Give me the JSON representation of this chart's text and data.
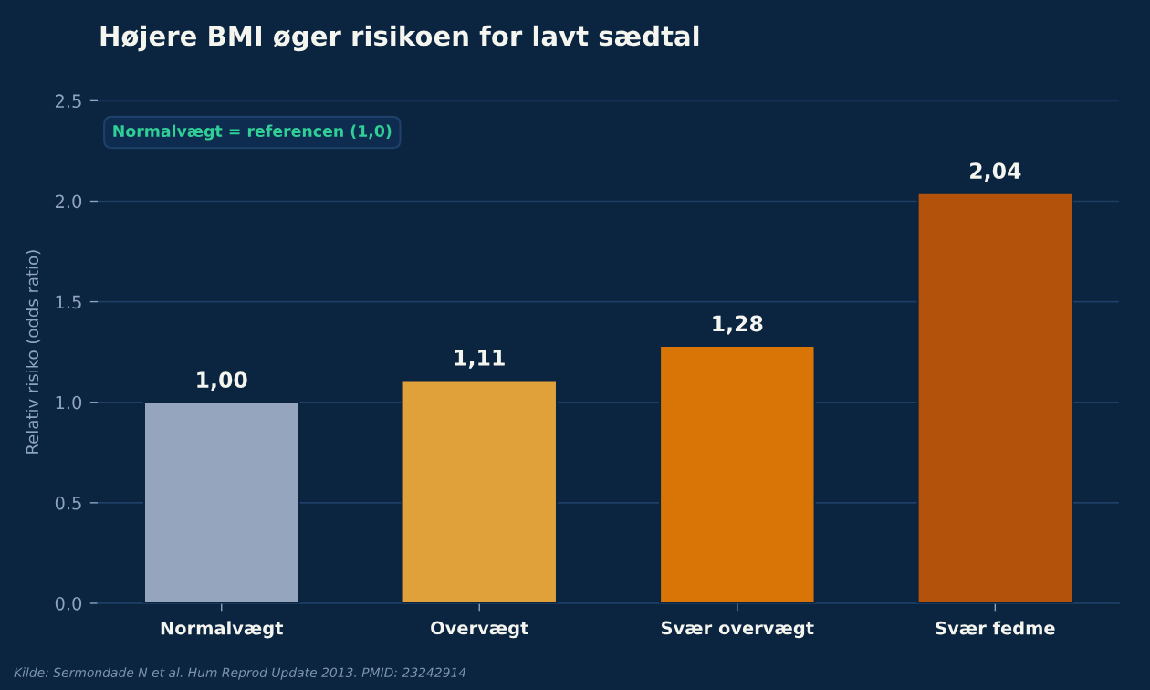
{
  "chart_data": {
    "type": "bar",
    "title": "Højere BMI øger risikoen for lavt sædtal",
    "ylabel": "Relativ risiko (odds ratio)",
    "categories": [
      "Normalvægt",
      "Overvægt",
      "Svær overvægt",
      "Svær fedme"
    ],
    "values": [
      1.0,
      1.11,
      1.28,
      2.04
    ],
    "colors": [
      "#94a5bd",
      "#e0a03a",
      "#d87506",
      "#b3520b"
    ],
    "value_labels": [
      "1,00",
      "1,11",
      "1,28",
      "2,04"
    ],
    "ylim": [
      0,
      2.5
    ],
    "yticks": [
      {
        "value": 0,
        "label": "0.0"
      },
      {
        "value": 0.5,
        "label": "0.5"
      },
      {
        "value": 1,
        "label": "1.0"
      },
      {
        "value": 1.5,
        "label": "1.5"
      },
      {
        "value": 2,
        "label": "2.0"
      },
      {
        "value": 2.5,
        "label": "2.5"
      }
    ],
    "grid": "y",
    "annotations": [
      "Normalvægt = referencen (1,0)",
      "Kilde: Sermondade N et al. Hum Reprod Update 2013. PMID: 23242914"
    ]
  }
}
